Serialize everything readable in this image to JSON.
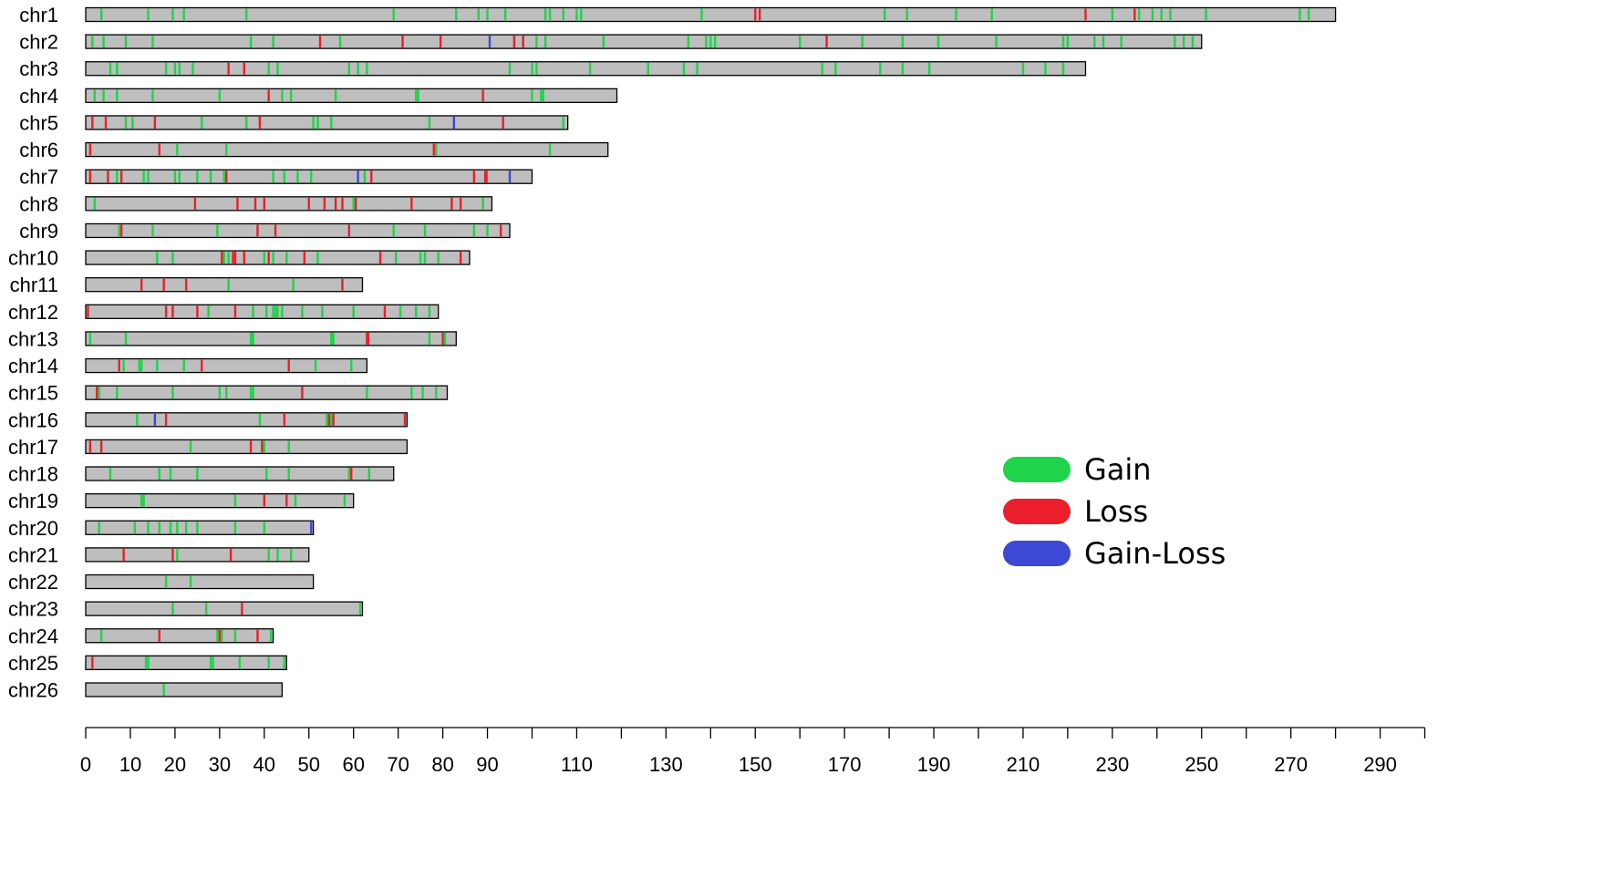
{
  "chart_data": {
    "type": "chromosome-map",
    "title": "",
    "xlabel": "",
    "ylabel": "",
    "xlim": [
      0,
      300
    ],
    "x_ticks": [
      0,
      10,
      20,
      30,
      40,
      50,
      60,
      70,
      80,
      90,
      110,
      130,
      150,
      170,
      190,
      210,
      230,
      250,
      270,
      290
    ],
    "legend": {
      "placement": "right-center",
      "entries": [
        {
          "key": "gain",
          "label": "Gain",
          "color": "#1fd44a"
        },
        {
          "key": "loss",
          "label": "Loss",
          "color": "#ea1f2b"
        },
        {
          "key": "gainloss",
          "label": "Gain-Loss",
          "color": "#3d48d4"
        }
      ]
    },
    "bar_color": "#bebebe",
    "chromosomes": [
      {
        "name": "chr1",
        "length": 280,
        "gain": [
          3.5,
          14,
          19.5,
          22,
          36,
          69,
          83,
          88,
          90,
          94,
          103,
          104,
          107,
          110,
          111,
          138,
          179,
          184,
          195,
          203,
          230,
          236,
          239,
          241,
          243,
          251,
          272,
          274
        ],
        "loss": [
          150,
          151,
          224,
          235
        ],
        "gainloss": []
      },
      {
        "name": "chr2",
        "length": 250,
        "gain": [
          1.5,
          4,
          9,
          15,
          37,
          42,
          57,
          101,
          103,
          116,
          135,
          139,
          140,
          141,
          160,
          174,
          183,
          191,
          204,
          219,
          220,
          226,
          228,
          232,
          244,
          246,
          248
        ],
        "loss": [
          52.5,
          71,
          79.5,
          96,
          98,
          166
        ],
        "gainloss": [
          90.5
        ]
      },
      {
        "name": "chr3",
        "length": 224,
        "gain": [
          5.5,
          7,
          18,
          20,
          21,
          24,
          41,
          43,
          59,
          61,
          63,
          95,
          100,
          101,
          113,
          126,
          134,
          137,
          165,
          168,
          178,
          183,
          189,
          210,
          215,
          219
        ],
        "loss": [
          32,
          35.5
        ],
        "gainloss": []
      },
      {
        "name": "chr4",
        "length": 119,
        "gain": [
          2,
          4,
          7,
          15,
          30,
          44,
          46,
          56,
          74,
          74.5,
          100,
          102,
          102.5
        ],
        "loss": [
          41,
          89
        ],
        "gainloss": []
      },
      {
        "name": "chr5",
        "length": 108,
        "gain": [
          9,
          10.5,
          26,
          36,
          51,
          52,
          55,
          77,
          107
        ],
        "loss": [
          1.5,
          4.5,
          15.5,
          39,
          93.5
        ],
        "gainloss": [
          82.5
        ]
      },
      {
        "name": "chr6",
        "length": 117,
        "gain": [
          20.5,
          31.5,
          78.5,
          104
        ],
        "loss": [
          1,
          16.5,
          78
        ],
        "gainloss": []
      },
      {
        "name": "chr7",
        "length": 100,
        "gain": [
          7,
          13,
          14,
          20,
          21,
          25,
          28,
          31,
          42,
          44.5,
          47.5,
          50.5,
          62.5
        ],
        "loss": [
          1,
          5,
          8,
          31.5,
          64,
          87,
          89.5,
          89.8
        ],
        "gainloss": [
          61,
          95
        ]
      },
      {
        "name": "chr8",
        "length": 91,
        "gain": [
          2,
          60,
          89
        ],
        "loss": [
          24.5,
          34,
          38,
          40,
          50,
          53.5,
          56,
          57.5,
          60.5,
          73,
          82,
          84
        ],
        "gainloss": []
      },
      {
        "name": "chr9",
        "length": 95,
        "gain": [
          7.5,
          15,
          29.5,
          69,
          76,
          87,
          90
        ],
        "loss": [
          8,
          38.5,
          42.5,
          59,
          93
        ],
        "gainloss": []
      },
      {
        "name": "chr10",
        "length": 86,
        "gain": [
          16,
          19.5,
          31,
          32,
          40,
          42,
          45,
          52,
          69.5,
          75,
          76,
          79
        ],
        "loss": [
          30.5,
          33,
          33.5,
          35.5,
          41,
          49,
          66,
          84
        ],
        "gainloss": []
      },
      {
        "name": "chr11",
        "length": 62,
        "gain": [
          32,
          46.5
        ],
        "loss": [
          12.5,
          17.5,
          22.5,
          57.5
        ],
        "gainloss": []
      },
      {
        "name": "chr12",
        "length": 79,
        "gain": [
          27.5,
          37.5,
          40.5,
          42,
          42.5,
          43,
          44,
          48.5,
          53,
          60,
          70.5,
          74,
          77
        ],
        "loss": [
          0.5,
          18,
          19.5,
          25,
          33.5,
          67
        ],
        "gainloss": []
      },
      {
        "name": "chr13",
        "length": 83,
        "gain": [
          1,
          9,
          37,
          37.5,
          55,
          55.5,
          77,
          80.5
        ],
        "loss": [
          63,
          63.3,
          80
        ],
        "gainloss": []
      },
      {
        "name": "chr14",
        "length": 63,
        "gain": [
          8.5,
          12,
          12.5,
          16,
          22,
          51.5,
          59.5
        ],
        "loss": [
          7.5,
          26,
          45.5
        ],
        "gainloss": []
      },
      {
        "name": "chr15",
        "length": 81,
        "gain": [
          3,
          7,
          19.5,
          30,
          31.5,
          37,
          37.5,
          63,
          73,
          75.5,
          78.5
        ],
        "loss": [
          2.5,
          48.5
        ],
        "gainloss": []
      },
      {
        "name": "chr16",
        "length": 72,
        "gain": [
          11.5,
          39,
          54,
          55
        ],
        "loss": [
          18,
          44.5,
          54.5,
          55.5,
          71.5
        ],
        "gainloss": [
          15.5
        ]
      },
      {
        "name": "chr17",
        "length": 72,
        "gain": [
          23.5,
          40,
          45.5
        ],
        "loss": [
          1,
          3.5,
          37,
          39.5
        ],
        "gainloss": []
      },
      {
        "name": "chr18",
        "length": 69,
        "gain": [
          5.5,
          16.5,
          19,
          25,
          40.5,
          45.5,
          59,
          63.5
        ],
        "loss": [
          59.5
        ],
        "gainloss": []
      },
      {
        "name": "chr19",
        "length": 60,
        "gain": [
          12.5,
          13,
          33.5,
          47,
          58
        ],
        "loss": [
          40,
          45
        ],
        "gainloss": []
      },
      {
        "name": "chr20",
        "length": 51,
        "gain": [
          3,
          11,
          14,
          16.5,
          19,
          20.5,
          22.5,
          25,
          33.5,
          40
        ],
        "loss": [],
        "gainloss": [
          50.5
        ]
      },
      {
        "name": "chr21",
        "length": 50,
        "gain": [
          20.5,
          41,
          43,
          46
        ],
        "loss": [
          8.5,
          19.5,
          32.5
        ],
        "gainloss": []
      },
      {
        "name": "chr22",
        "length": 51,
        "gain": [
          18,
          23.5
        ],
        "loss": [],
        "gainloss": []
      },
      {
        "name": "chr23",
        "length": 62,
        "gain": [
          19.5,
          27,
          61.5
        ],
        "loss": [
          35
        ],
        "gainloss": []
      },
      {
        "name": "chr24",
        "length": 42,
        "gain": [
          3.5,
          29.5,
          30.5,
          33.5,
          41.5
        ],
        "loss": [
          16.5,
          30,
          38.5
        ],
        "gainloss": []
      },
      {
        "name": "chr25",
        "length": 45,
        "gain": [
          13.5,
          14,
          28,
          28.5,
          34.5,
          41,
          44.5
        ],
        "loss": [
          1.5
        ],
        "gainloss": []
      },
      {
        "name": "chr26",
        "length": 44,
        "gain": [
          17.5
        ],
        "loss": [],
        "gainloss": []
      }
    ]
  }
}
